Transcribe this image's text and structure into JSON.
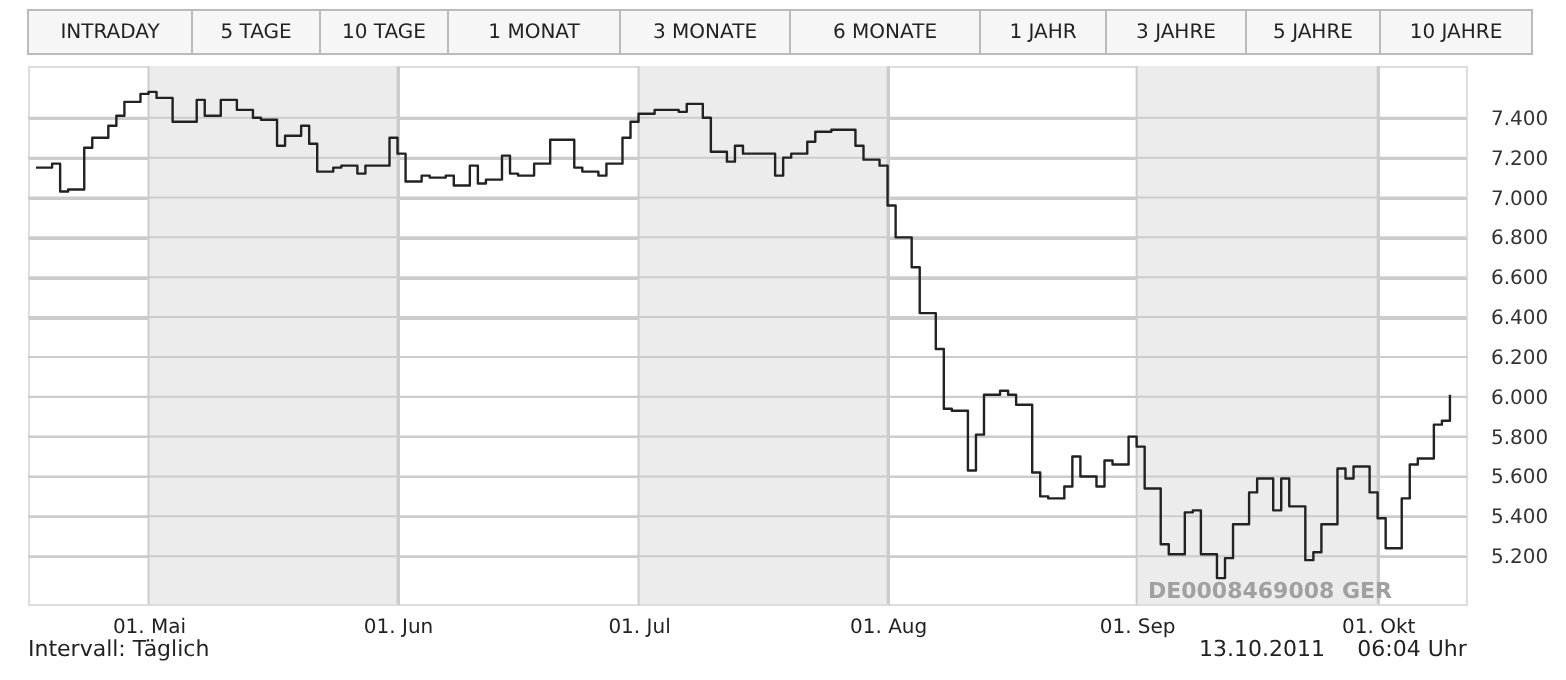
{
  "chart_data": {
    "type": "step",
    "x": [
      "2011-04-17",
      "2011-04-19",
      "2011-04-20",
      "2011-04-21",
      "2011-04-23",
      "2011-04-24",
      "2011-04-26",
      "2011-04-27",
      "2011-04-28",
      "2011-04-30",
      "2011-05-01",
      "2011-05-02",
      "2011-05-04",
      "2011-05-07",
      "2011-05-08",
      "2011-05-10",
      "2011-05-12",
      "2011-05-14",
      "2011-05-15",
      "2011-05-17",
      "2011-05-18",
      "2011-05-20",
      "2011-05-21",
      "2011-05-22",
      "2011-05-24",
      "2011-05-25",
      "2011-05-27",
      "2011-05-28",
      "2011-05-29",
      "2011-05-31",
      "2011-06-01",
      "2011-06-02",
      "2011-06-04",
      "2011-06-05",
      "2011-06-07",
      "2011-06-08",
      "2011-06-10",
      "2011-06-11",
      "2011-06-12",
      "2011-06-14",
      "2011-06-15",
      "2011-06-16",
      "2011-06-18",
      "2011-06-19",
      "2011-06-20",
      "2011-06-23",
      "2011-06-24",
      "2011-06-26",
      "2011-06-27",
      "2011-06-29",
      "2011-06-30",
      "2011-07-01",
      "2011-07-03",
      "2011-07-06",
      "2011-07-07",
      "2011-07-09",
      "2011-07-10",
      "2011-07-12",
      "2011-07-13",
      "2011-07-14",
      "2011-07-18",
      "2011-07-19",
      "2011-07-20",
      "2011-07-22",
      "2011-07-23",
      "2011-07-25",
      "2011-07-28",
      "2011-07-29",
      "2011-07-31",
      "2011-08-01",
      "2011-08-02",
      "2011-08-04",
      "2011-08-05",
      "2011-08-07",
      "2011-08-08",
      "2011-08-09",
      "2011-08-11",
      "2011-08-12",
      "2011-08-13",
      "2011-08-15",
      "2011-08-16",
      "2011-08-17",
      "2011-08-19",
      "2011-08-20",
      "2011-08-21",
      "2011-08-23",
      "2011-08-24",
      "2011-08-25",
      "2011-08-27",
      "2011-08-28",
      "2011-08-29",
      "2011-08-31",
      "2011-09-01",
      "2011-09-02",
      "2011-09-04",
      "2011-09-05",
      "2011-09-07",
      "2011-09-08",
      "2011-09-09",
      "2011-09-11",
      "2011-09-12",
      "2011-09-13",
      "2011-09-15",
      "2011-09-16",
      "2011-09-18",
      "2011-09-19",
      "2011-09-20",
      "2011-09-22",
      "2011-09-23",
      "2011-09-24",
      "2011-09-26",
      "2011-09-27",
      "2011-09-28",
      "2011-09-30",
      "2011-10-01",
      "2011-10-02",
      "2011-10-04",
      "2011-10-05",
      "2011-10-06",
      "2011-10-08",
      "2011-10-09",
      "2011-10-10"
    ],
    "series": [
      {
        "color": "#222222",
        "values": [
          7150,
          7170,
          7030,
          7040,
          7250,
          7300,
          7360,
          7410,
          7480,
          7520,
          7530,
          7500,
          7380,
          7490,
          7410,
          7490,
          7440,
          7400,
          7390,
          7260,
          7310,
          7360,
          7270,
          7130,
          7150,
          7160,
          7120,
          7160,
          7160,
          7300,
          7220,
          7080,
          7110,
          7100,
          7110,
          7060,
          7160,
          7070,
          7090,
          7210,
          7120,
          7110,
          7170,
          7170,
          7290,
          7150,
          7130,
          7110,
          7170,
          7300,
          7380,
          7420,
          7440,
          7430,
          7470,
          7400,
          7230,
          7180,
          7260,
          7220,
          7110,
          7200,
          7220,
          7280,
          7330,
          7340,
          7260,
          7190,
          7160,
          6960,
          6800,
          6650,
          6420,
          6240,
          5940,
          5930,
          5630,
          5810,
          6010,
          6030,
          6010,
          5960,
          5620,
          5500,
          5490,
          5550,
          5700,
          5600,
          5550,
          5680,
          5660,
          5800,
          5750,
          5540,
          5260,
          5210,
          5420,
          5430,
          5210,
          5090,
          5190,
          5360,
          5520,
          5590,
          5430,
          5590,
          5450,
          5180,
          5220,
          5360,
          5640,
          5590,
          5650,
          5520,
          5390,
          5240,
          5490,
          5660,
          5690,
          5860,
          5880,
          6010
        ]
      }
    ],
    "xlim": [
      "2011-04-16",
      "2011-10-12"
    ],
    "xticks": [
      {
        "value": "2011-05-01",
        "label": "01. Mai"
      },
      {
        "value": "2011-06-01",
        "label": "01. Jun"
      },
      {
        "value": "2011-07-01",
        "label": "01. Jul"
      },
      {
        "value": "2011-08-01",
        "label": "01. Aug"
      },
      {
        "value": "2011-09-01",
        "label": "01. Sep"
      },
      {
        "value": "2011-10-01",
        "label": "01. Okt"
      }
    ],
    "ylim": [
      4960,
      7660
    ],
    "yticks": [
      {
        "value": 5200,
        "label": "5.200"
      },
      {
        "value": 5400,
        "label": "5.400"
      },
      {
        "value": 5600,
        "label": "5.600"
      },
      {
        "value": 5800,
        "label": "5.800"
      },
      {
        "value": 6000,
        "label": "6.000"
      },
      {
        "value": 6200,
        "label": "6.200"
      },
      {
        "value": 6400,
        "label": "6.400"
      },
      {
        "value": 6600,
        "label": "6.600"
      },
      {
        "value": 6800,
        "label": "6.800"
      },
      {
        "value": 7000,
        "label": "7.000"
      },
      {
        "value": 7200,
        "label": "7.200"
      },
      {
        "value": 7400,
        "label": "7.400"
      }
    ],
    "grid": true,
    "bands": [
      {
        "axis": "x",
        "from": "2011-05-01",
        "to": "2011-06-01",
        "color": "#ececec"
      },
      {
        "axis": "x",
        "from": "2011-07-01",
        "to": "2011-08-01",
        "color": "#ececec"
      },
      {
        "axis": "x",
        "from": "2011-09-01",
        "to": "2011-10-01",
        "color": "#ececec"
      }
    ],
    "annotations": [
      "Intervall: Täglich",
      "13.10.2011",
      "06:04 Uhr",
      "DE0008469008  GER",
      "INTRADAY",
      "5 TAGE",
      "10 TAGE",
      "1 MONAT",
      "3 MONATE",
      "6 MONATE",
      "1 JAHR",
      "3 JAHRE",
      "5 JAHRE",
      "10 JAHRE"
    ]
  }
}
